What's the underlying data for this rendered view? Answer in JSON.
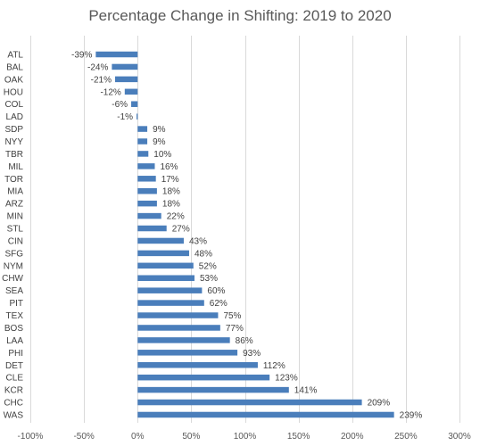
{
  "chart_data": {
    "type": "bar",
    "orientation": "horizontal",
    "title": "Percentage Change in Shifting: 2019 to 2020",
    "xlabel": "",
    "ylabel": "",
    "xlim": [
      -100,
      300
    ],
    "x_ticks": [
      -100,
      -50,
      0,
      50,
      100,
      150,
      200,
      250,
      300
    ],
    "x_tick_labels": [
      "-100%",
      "-50%",
      "0%",
      "50%",
      "100%",
      "150%",
      "200%",
      "250%",
      "300%"
    ],
    "grid": "vertical",
    "legend": "none",
    "bar_color": "#4a7ebb",
    "categories": [
      "ATL",
      "BAL",
      "OAK",
      "HOU",
      "COL",
      "LAD",
      "SDP",
      "NYY",
      "TBR",
      "MIL",
      "TOR",
      "MIA",
      "ARZ",
      "MIN",
      "STL",
      "CIN",
      "SFG",
      "NYM",
      "CHW",
      "SEA",
      "PIT",
      "TEX",
      "BOS",
      "LAA",
      "PHI",
      "DET",
      "CLE",
      "KCR",
      "CHC",
      "WAS"
    ],
    "values": [
      -39,
      -24,
      -21,
      -12,
      -6,
      -1,
      9,
      9,
      10,
      16,
      17,
      18,
      18,
      22,
      27,
      43,
      48,
      52,
      53,
      60,
      62,
      75,
      77,
      86,
      93,
      112,
      123,
      141,
      209,
      239
    ],
    "data_labels": [
      "-39%",
      "-24%",
      "-21%",
      "-12%",
      "-6%",
      "-1%",
      "9%",
      "9%",
      "10%",
      "16%",
      "17%",
      "18%",
      "18%",
      "22%",
      "27%",
      "43%",
      "48%",
      "52%",
      "53%",
      "60%",
      "62%",
      "75%",
      "77%",
      "86%",
      "93%",
      "112%",
      "123%",
      "141%",
      "209%",
      "239%"
    ]
  }
}
